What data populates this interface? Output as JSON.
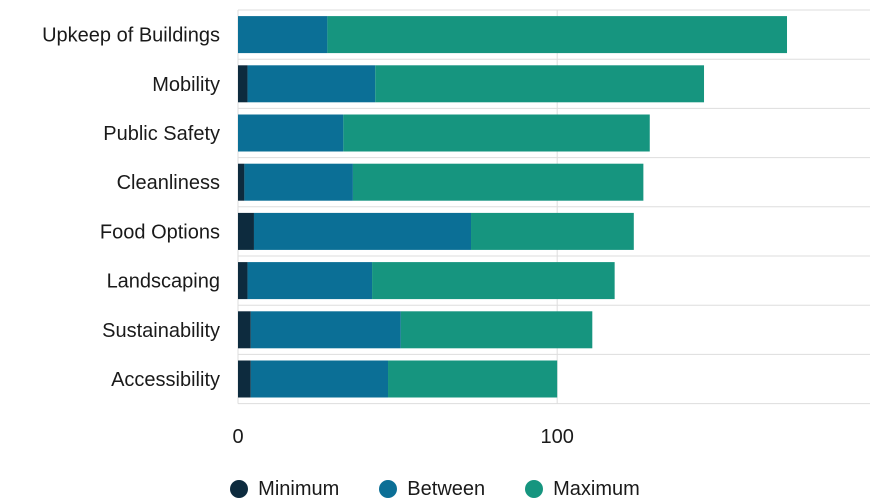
{
  "chart_data": {
    "type": "bar",
    "orientation": "horizontal",
    "stacked": true,
    "categories": [
      "Upkeep of Buildings",
      "Mobility",
      "Public Safety",
      "Cleanliness",
      "Food Options",
      "Landscaping",
      "Sustainability",
      "Accessibility"
    ],
    "series": [
      {
        "name": "Minimum",
        "color": "#0d2b3e",
        "values": [
          0,
          3,
          0,
          2,
          5,
          3,
          4,
          4
        ]
      },
      {
        "name": "Between",
        "color": "#0b6f96",
        "values": [
          28,
          40,
          33,
          34,
          68,
          39,
          47,
          43
        ]
      },
      {
        "name": "Maximum",
        "color": "#16957f",
        "values": [
          144,
          103,
          96,
          91,
          51,
          76,
          60,
          53
        ]
      }
    ],
    "xticks": [
      0,
      100
    ],
    "xlim": [
      0,
      198
    ],
    "grid": true,
    "legend_position": "bottom"
  }
}
